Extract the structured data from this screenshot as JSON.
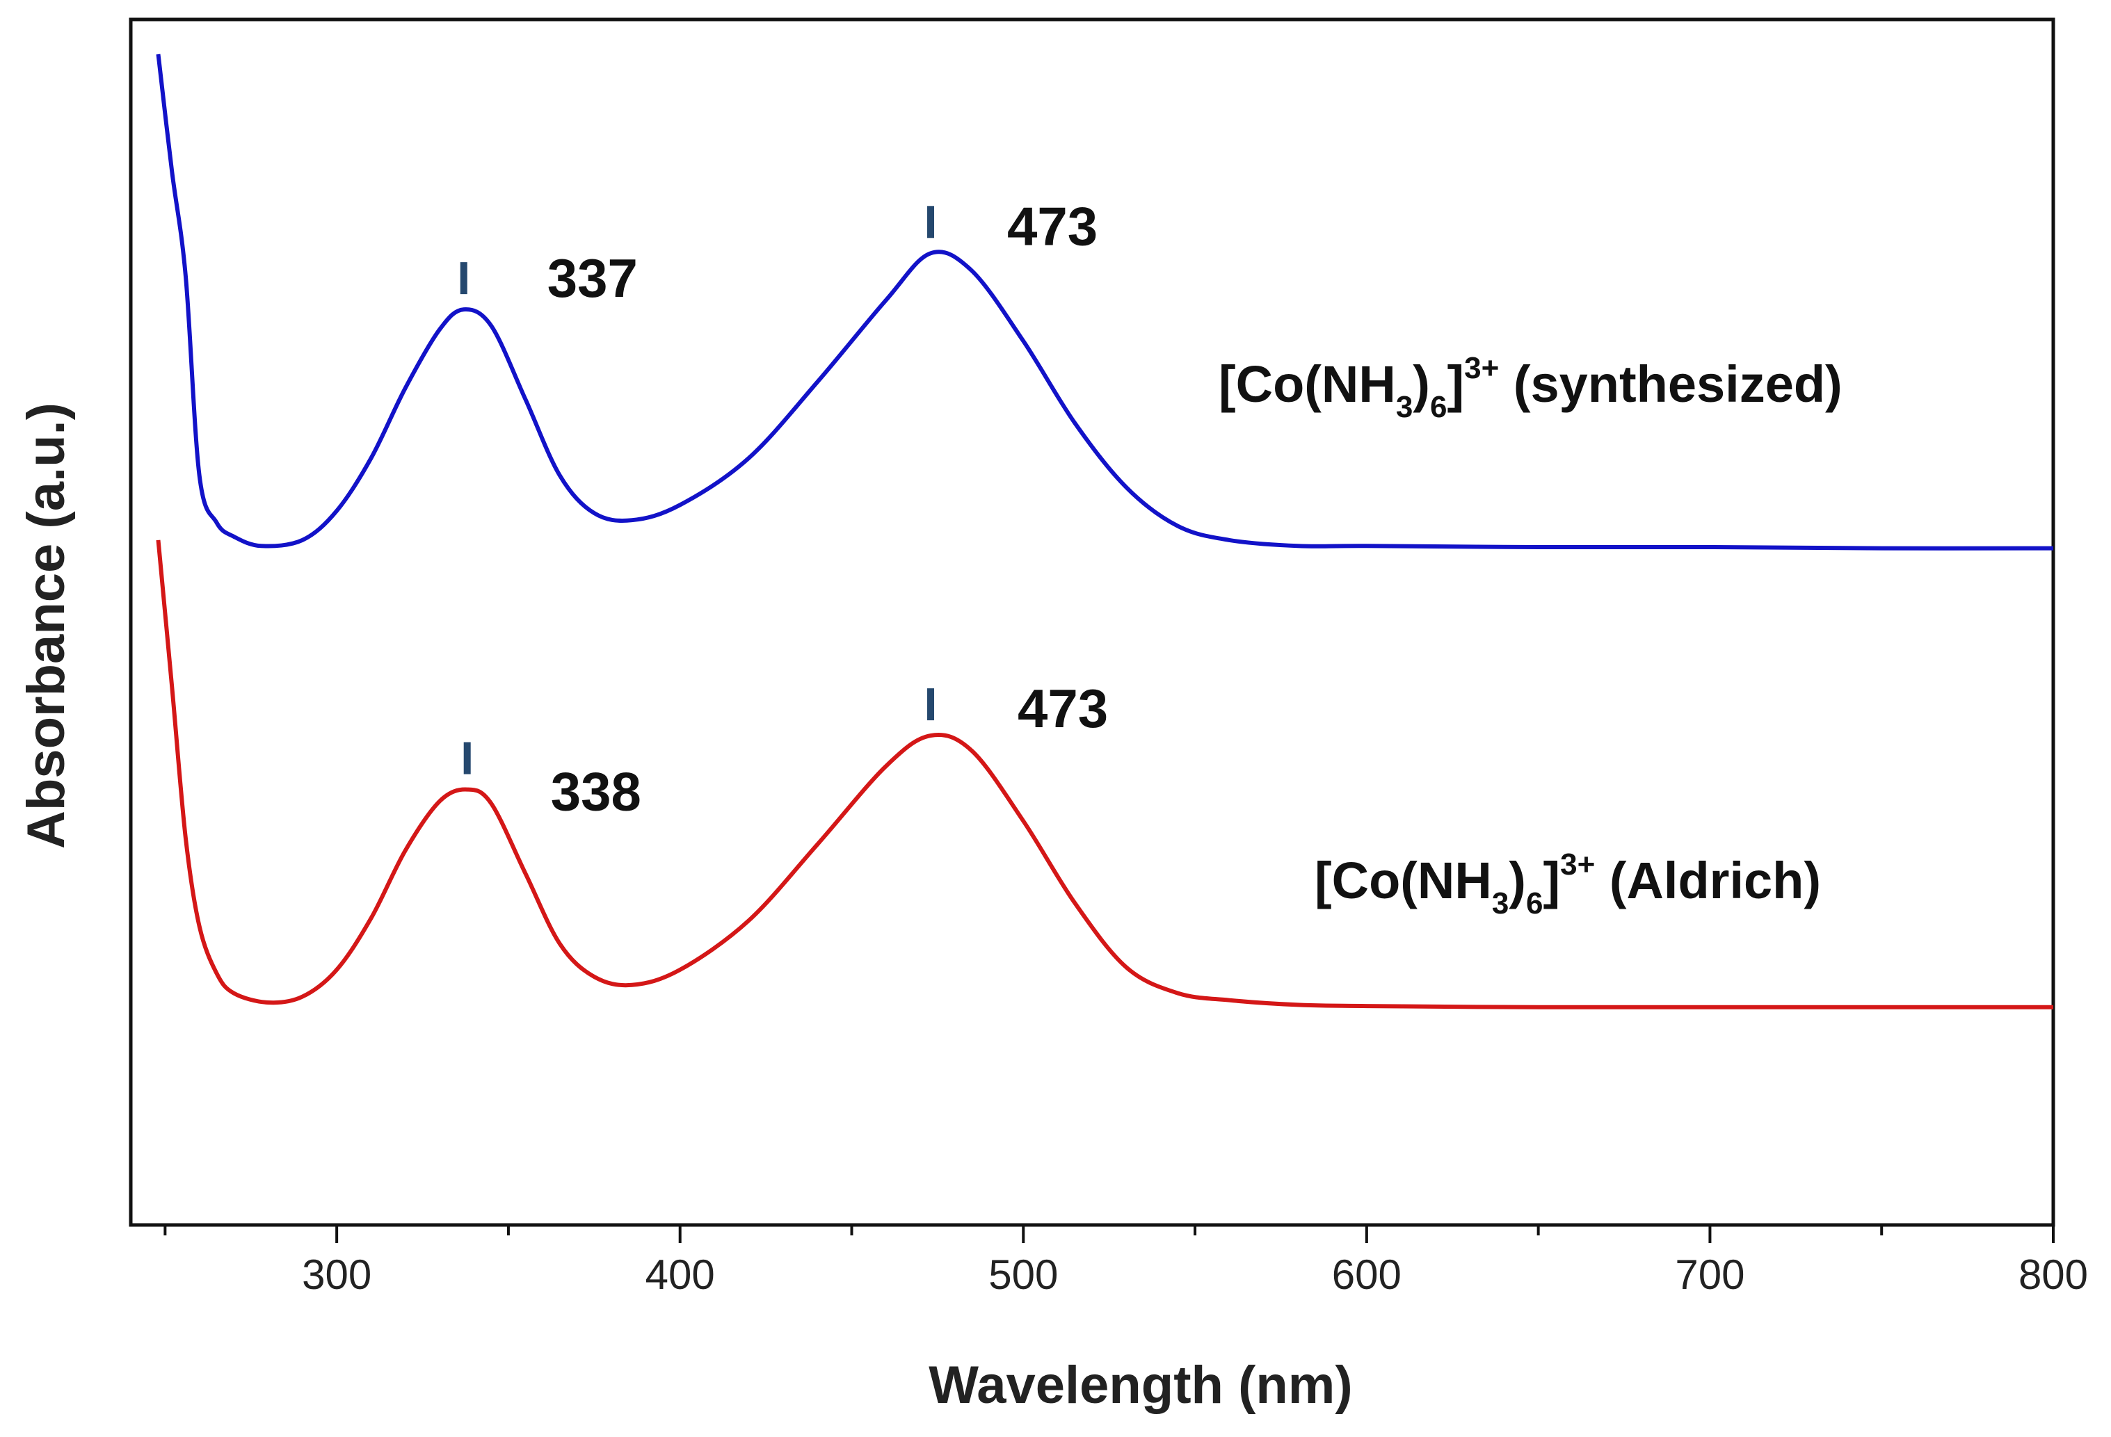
{
  "chart_data": {
    "type": "line",
    "xlabel": "Wavelength (nm)",
    "ylabel": "Absorbance (a.u.)",
    "xlim": [
      240,
      800
    ],
    "ylim": [
      0,
      10
    ],
    "grid": false,
    "x_ticks": [
      300,
      400,
      500,
      600,
      700,
      800
    ],
    "x_tick_labels": [
      "300",
      "400",
      "500",
      "600",
      "700",
      "800"
    ],
    "x_minor_ticks": [
      250,
      350,
      450,
      550,
      650,
      750
    ],
    "series": [
      {
        "name": "[Co(NH3)6]3+ (synthesized)",
        "color": "#1212c8",
        "label": {
          "main": "[Co(NH",
          "sub1": "3",
          "mid": ")",
          "sub2": "6",
          "close": "]",
          "sup": "3+",
          "suffix": " (synthesized)"
        },
        "x": [
          248,
          252,
          256,
          260,
          265,
          270,
          278,
          290,
          300,
          310,
          320,
          330,
          337,
          345,
          355,
          365,
          375,
          386,
          400,
          420,
          440,
          460,
          473,
          485,
          500,
          515,
          530,
          545,
          560,
          580,
          600,
          650,
          700,
          750,
          800
        ],
        "y": [
          10.0,
          9.0,
          8.1,
          6.4,
          6.0,
          5.88,
          5.8,
          5.85,
          6.1,
          6.55,
          7.15,
          7.65,
          7.82,
          7.68,
          7.05,
          6.4,
          6.08,
          6.02,
          6.15,
          6.55,
          7.2,
          7.9,
          8.3,
          8.15,
          7.55,
          6.85,
          6.3,
          5.97,
          5.85,
          5.8,
          5.8,
          5.79,
          5.79,
          5.78,
          5.78
        ],
        "peaks": [
          {
            "x": 337,
            "label": "337"
          },
          {
            "x": 473,
            "label": "473"
          }
        ]
      },
      {
        "name": "[Co(NH3)6]3+ (Aldrich)",
        "color": "#d41717",
        "label": {
          "main": "[Co(NH",
          "sub1": "3",
          "mid": ")",
          "sub2": "6",
          "close": "]",
          "sup": "3+",
          "suffix": " (Aldrich)"
        },
        "x": [
          248,
          252,
          256,
          260,
          265,
          270,
          280,
          290,
          300,
          310,
          320,
          330,
          338,
          345,
          355,
          365,
          375,
          386,
          400,
          420,
          440,
          460,
          473,
          485,
          500,
          515,
          530,
          545,
          560,
          580,
          600,
          650,
          700,
          750,
          800
        ],
        "y": [
          5.85,
          4.6,
          3.3,
          2.55,
          2.15,
          1.98,
          1.9,
          1.95,
          2.18,
          2.62,
          3.2,
          3.62,
          3.72,
          3.6,
          3.0,
          2.4,
          2.12,
          2.05,
          2.18,
          2.6,
          3.25,
          3.92,
          4.18,
          4.05,
          3.45,
          2.75,
          2.2,
          1.98,
          1.92,
          1.88,
          1.87,
          1.86,
          1.86,
          1.86,
          1.86
        ],
        "peaks": [
          {
            "x": 338,
            "label": "338"
          },
          {
            "x": 473,
            "label": "473"
          }
        ]
      }
    ]
  }
}
